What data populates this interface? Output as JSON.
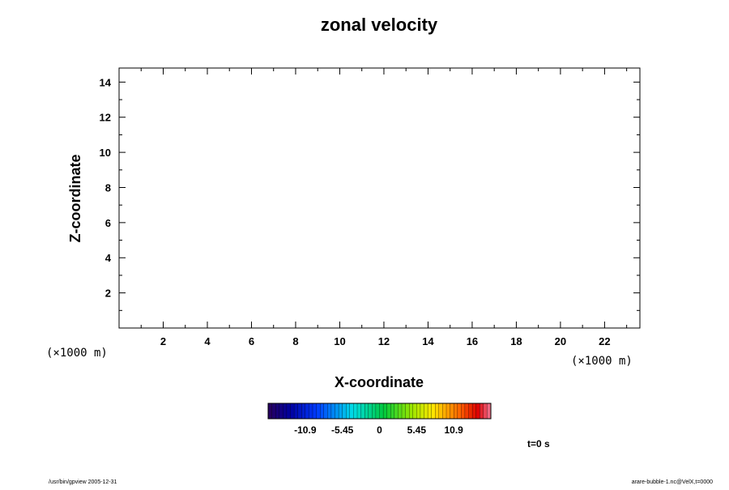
{
  "chart_data": {
    "type": "heatmap",
    "title": "zonal velocity",
    "xlabel": "X-coordinate",
    "ylabel": "Z-coordinate",
    "x_unit_label": "(×1000 m)",
    "y_unit_label": "(×1000 m)",
    "xlim": [
      0,
      23.6
    ],
    "ylim": [
      0,
      14.8
    ],
    "x_ticks_major": [
      2,
      4,
      6,
      8,
      10,
      12,
      14,
      16,
      18,
      20,
      22
    ],
    "y_ticks_major": [
      2,
      4,
      6,
      8,
      10,
      12,
      14
    ],
    "x_tick_labels": [
      "2",
      "4",
      "6",
      "8",
      "10",
      "12",
      "14",
      "16",
      "18",
      "20",
      "22"
    ],
    "y_tick_labels": [
      "2",
      "4",
      "6",
      "8",
      "10",
      "12",
      "14"
    ],
    "data": [],
    "grid": false,
    "colorbar": {
      "tick_values": [
        -10.9,
        -5.45,
        0,
        5.45,
        10.9
      ],
      "tick_labels": [
        "-10.9",
        "-5.45",
        "0",
        "5.45",
        "10.9"
      ],
      "range": [
        -16.35,
        16.35
      ],
      "bins": 60,
      "placement": "bottom"
    },
    "time_label": "t=0 s"
  },
  "footer": {
    "left": "/usr/bin/gpview 2005-12-31",
    "right": "arare-bubble-1.nc@VelX,t=0000"
  }
}
